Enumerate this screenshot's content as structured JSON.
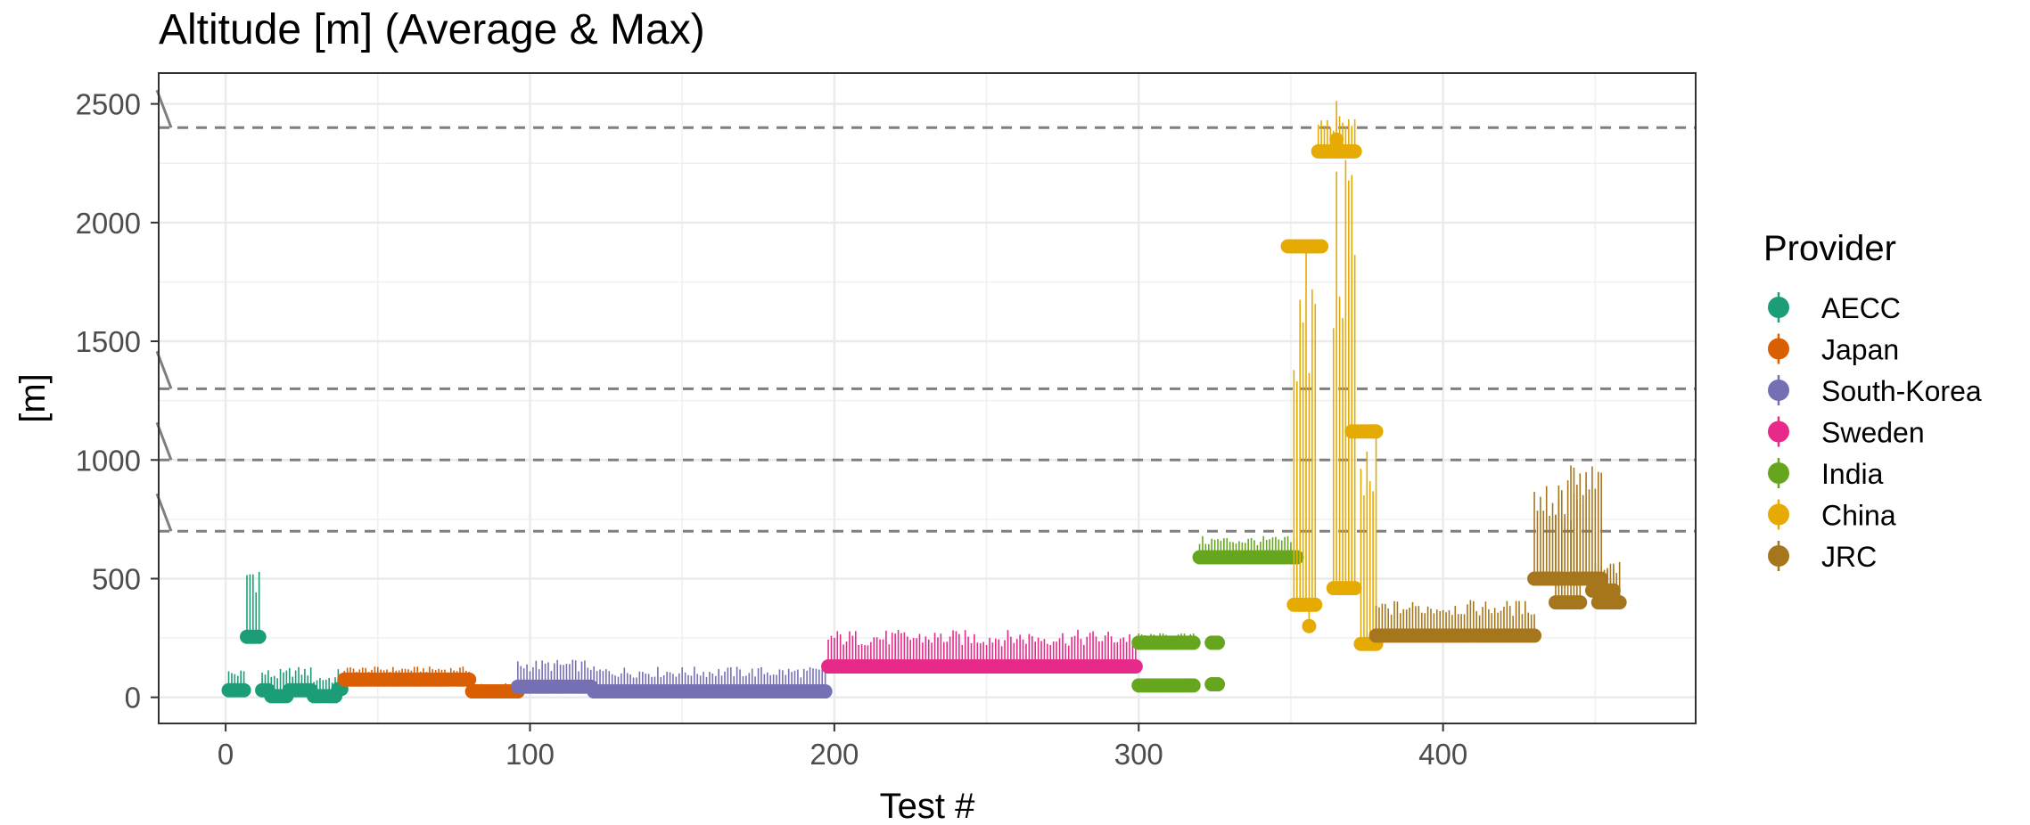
{
  "chart_data": {
    "type": "scatter",
    "title": "Altitude [m] (Average & Max)",
    "xlabel": "Test #",
    "ylabel": "[m]",
    "xlim": [
      -22,
      483
    ],
    "ylim": [
      -110,
      2630
    ],
    "x_ticks": [
      0,
      100,
      200,
      300,
      400
    ],
    "y_ticks": [
      0,
      500,
      1000,
      1500,
      2000,
      2500
    ],
    "grid": true,
    "legend": {
      "title": "Provider",
      "position": "right"
    },
    "reference_lines": [
      2400,
      1300,
      1000,
      700
    ],
    "series": [
      {
        "name": "AECC",
        "color": "#1b9e77",
        "segments": [
          {
            "from": 1,
            "to": 6,
            "avg": 30,
            "max": 120
          },
          {
            "from": 7,
            "to": 11,
            "avg": 255,
            "max": 590
          },
          {
            "from": 12,
            "to": 14,
            "avg": 30,
            "max": 120
          },
          {
            "from": 15,
            "to": 20,
            "avg": 5,
            "max": 120
          },
          {
            "from": 21,
            "to": 28,
            "avg": 30,
            "max": 130
          },
          {
            "from": 29,
            "to": 36,
            "avg": 5,
            "max": 100
          },
          {
            "from": 37,
            "to": 38,
            "avg": 35,
            "max": 120
          }
        ]
      },
      {
        "name": "Japan",
        "color": "#d95f02",
        "segments": [
          {
            "from": 39,
            "to": 80,
            "avg": 75,
            "max": 130
          },
          {
            "from": 81,
            "to": 96,
            "avg": 25,
            "max": 60
          }
        ]
      },
      {
        "name": "South-Korea",
        "color": "#7570b3",
        "segments": [
          {
            "from": 96,
            "to": 120,
            "avg": 45,
            "max": 160
          },
          {
            "from": 121,
            "to": 197,
            "avg": 25,
            "max": 130
          }
        ]
      },
      {
        "name": "Sweden",
        "color": "#e7298a",
        "segments": [
          {
            "from": 198,
            "to": 299,
            "avg": 130,
            "max": 285
          }
        ]
      },
      {
        "name": "India",
        "color": "#66a61e",
        "segments": [
          {
            "from": 300,
            "to": 318,
            "avg": 230,
            "max": 270
          },
          {
            "from": 300,
            "to": 318,
            "avg": 50,
            "max": 70
          },
          {
            "from": 324,
            "to": 326,
            "avg": 230,
            "max": 250
          },
          {
            "from": 324,
            "to": 326,
            "avg": 55,
            "max": 70
          },
          {
            "from": 320,
            "to": 352,
            "avg": 590,
            "max": 680
          }
        ]
      },
      {
        "name": "China",
        "color": "#e6ab02",
        "segments": [
          {
            "from": 349,
            "to": 360,
            "avg": 1900,
            "max": 1920
          },
          {
            "from": 351,
            "to": 358,
            "avg": 390,
            "max": 1900
          },
          {
            "from": 356,
            "to": 356,
            "avg": 300,
            "max": 400
          },
          {
            "from": 359,
            "to": 371,
            "avg": 2300,
            "max": 2450
          },
          {
            "from": 364,
            "to": 371,
            "avg": 460,
            "max": 2300
          },
          {
            "from": 365,
            "to": 365,
            "avg": 2350,
            "max": 2630
          },
          {
            "from": 370,
            "to": 378,
            "avg": 1120,
            "max": 1140
          },
          {
            "from": 373,
            "to": 378,
            "avg": 225,
            "max": 1120
          }
        ]
      },
      {
        "name": "JRC",
        "color": "#a6761d",
        "segments": [
          {
            "from": 378,
            "to": 430,
            "avg": 260,
            "max": 410
          },
          {
            "from": 430,
            "to": 440,
            "avg": 500,
            "max": 930
          },
          {
            "from": 437,
            "to": 445,
            "avg": 400,
            "max": 930
          },
          {
            "from": 442,
            "to": 452,
            "avg": 500,
            "max": 1000
          },
          {
            "from": 449,
            "to": 456,
            "avg": 450,
            "max": 570
          },
          {
            "from": 451,
            "to": 458,
            "avg": 400,
            "max": 570
          }
        ]
      }
    ]
  }
}
